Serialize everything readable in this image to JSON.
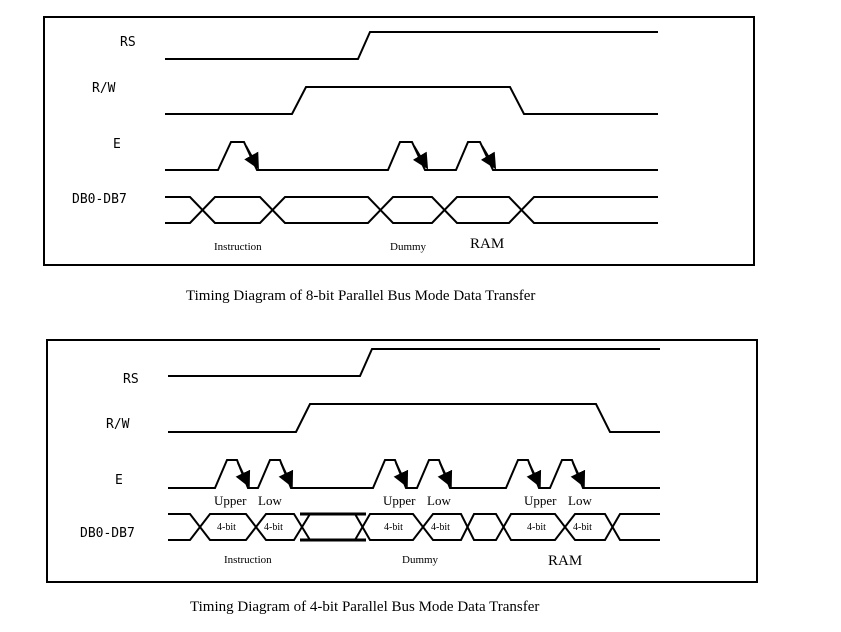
{
  "diagram_8bit": {
    "signals": {
      "rs": "RS",
      "rw": "R/W",
      "e": "E",
      "db": "DB0-DB7"
    },
    "phase_labels": {
      "instruction": "Instruction",
      "dummy": "Dummy",
      "ram": "RAM"
    },
    "caption": "Timing Diagram of 8-bit Parallel Bus Mode Data Transfer"
  },
  "diagram_4bit": {
    "signals": {
      "rs": "RS",
      "rw": "R/W",
      "e": "E",
      "db": "DB0-DB7"
    },
    "strobe_labels": {
      "upper_1": "Upper",
      "low_1": "Low",
      "upper_2": "Upper",
      "low_2": "Low",
      "upper_3": "Upper",
      "low_3": "Low"
    },
    "nibble_labels": [
      "4-bit",
      "4-bit",
      "4-bit",
      "4-bit",
      "4-bit",
      "4-bit"
    ],
    "phase_labels": {
      "instruction": "Instruction",
      "dummy": "Dummy",
      "ram": "RAM"
    },
    "caption": "Timing Diagram of 4-bit Parallel Bus Mode Data Transfer"
  }
}
